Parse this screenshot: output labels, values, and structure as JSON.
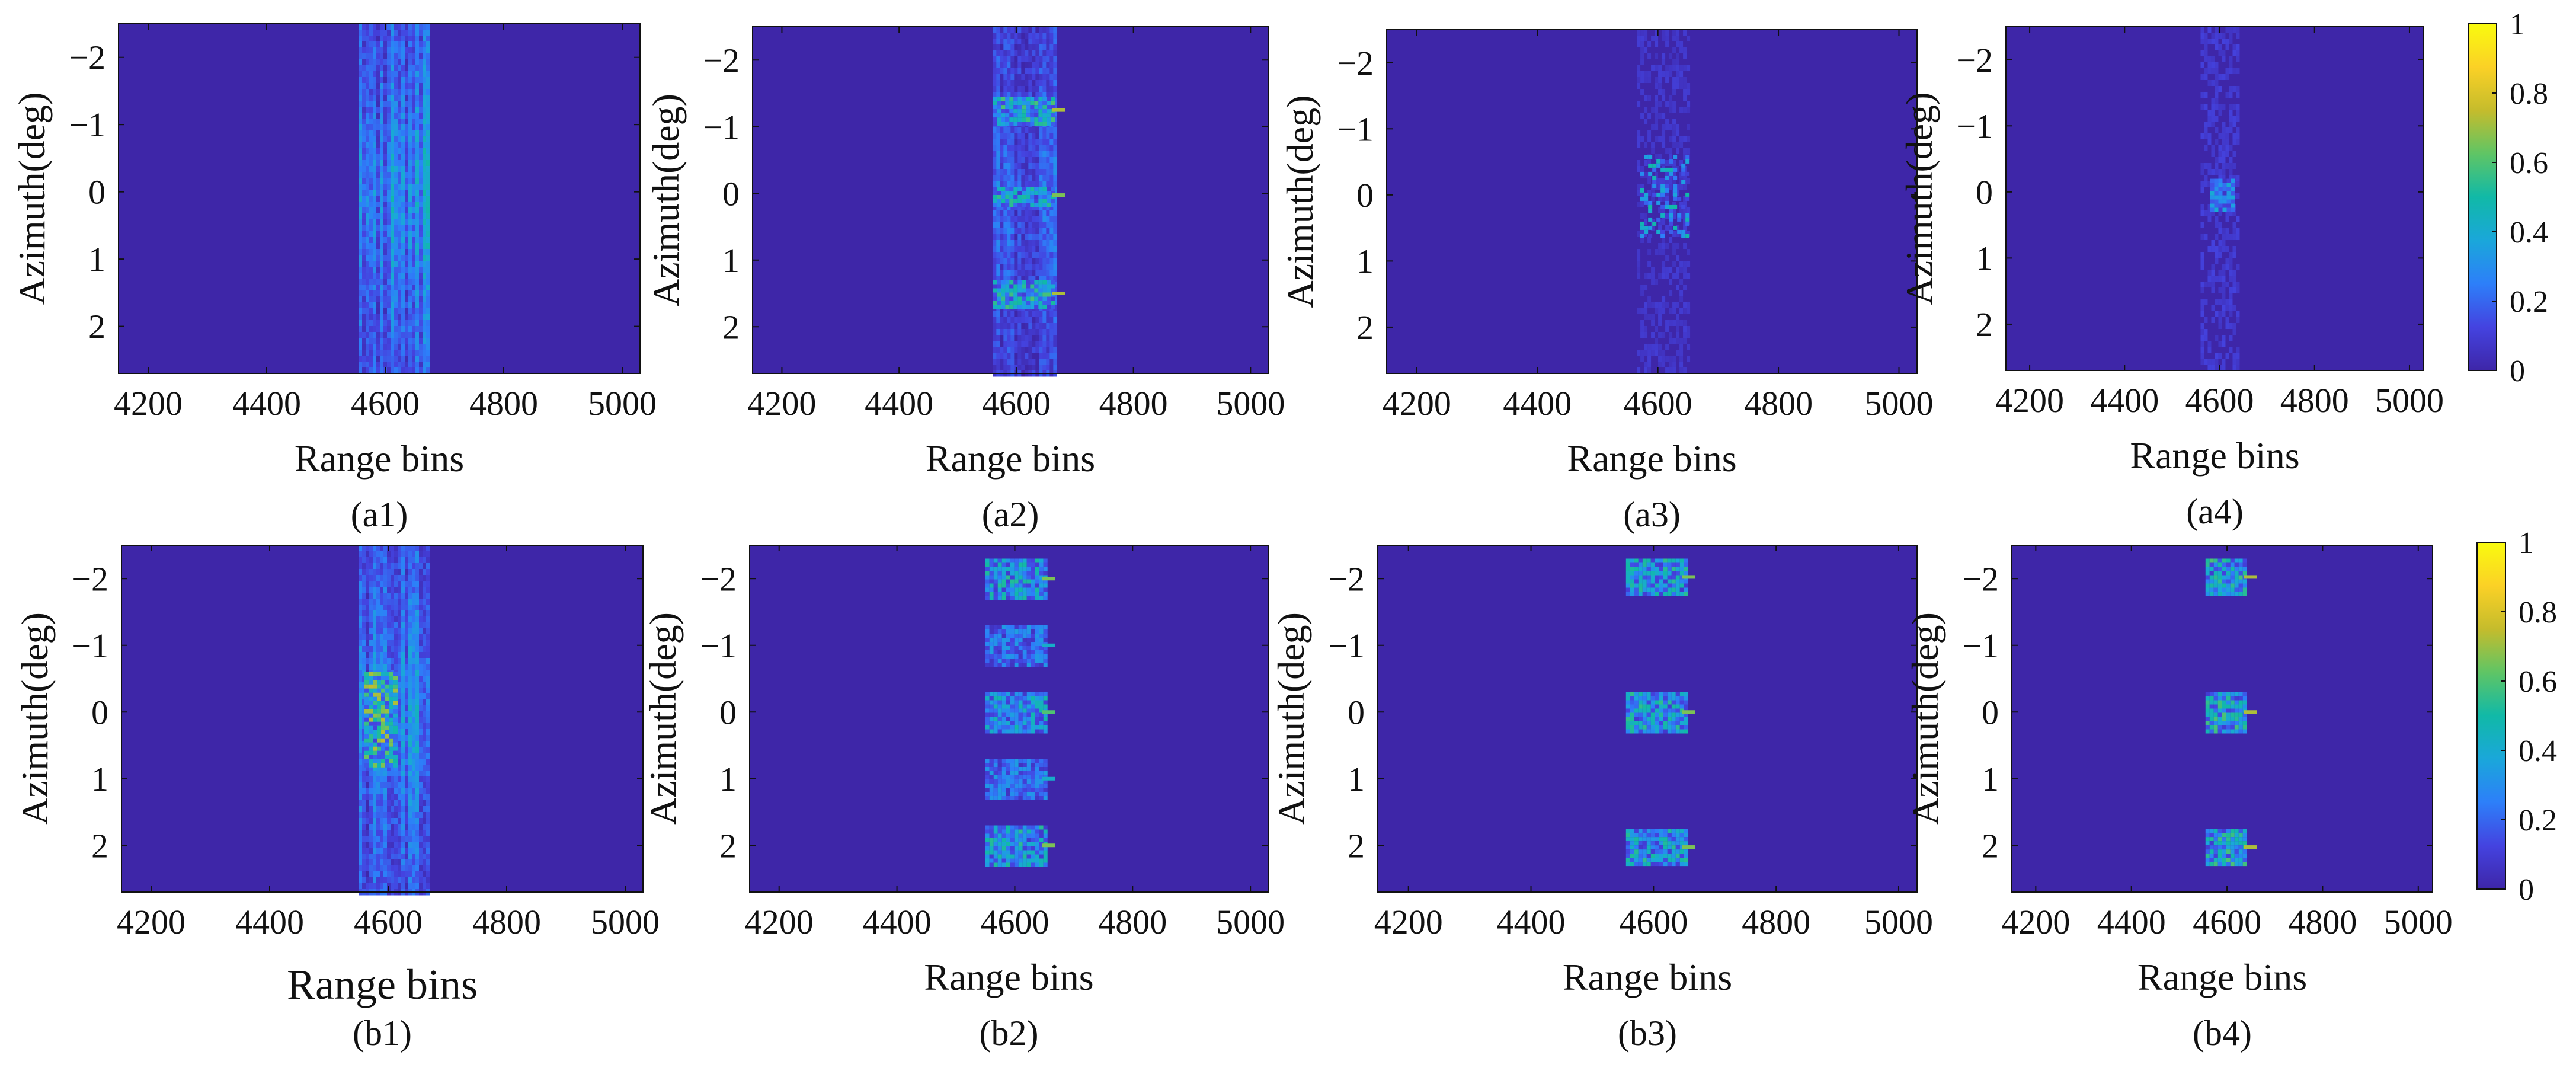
{
  "colors": {
    "background": "#3b2fa0",
    "parula_stops": [
      "#3e26a8",
      "#4443e0",
      "#2d7ff9",
      "#1aa7da",
      "#11b9a7",
      "#5fc565",
      "#c5bc2c",
      "#fbd126",
      "#f9fb0e"
    ]
  },
  "chart_data": [
    {
      "id": "a1",
      "type": "heatmap",
      "caption": "(a1)",
      "xlabel": "Range bins",
      "ylabel": "Azimuth(deg)",
      "xlim": [
        4150,
        5030
      ],
      "ylim": [
        -2.5,
        2.7
      ],
      "xticks": [
        "4200",
        "4400",
        "4600",
        "4800",
        "5000"
      ],
      "xtick_values": [
        4200,
        4400,
        4600,
        4800,
        5000
      ],
      "yticks": [
        "−2",
        "−1",
        "0",
        "1",
        "2"
      ],
      "ytick_values": [
        -2,
        -1,
        0,
        1,
        2
      ],
      "pattern": "band",
      "band_range": [
        4555,
        4675
      ],
      "peak": 0.65,
      "blobs": []
    },
    {
      "id": "a2",
      "type": "heatmap",
      "caption": "(a2)",
      "xlabel": "Range bins",
      "ylabel": "Azimuth(deg)",
      "xlim": [
        4150,
        5030
      ],
      "ylim": [
        -2.5,
        2.7
      ],
      "xticks": [
        "4200",
        "4400",
        "4600",
        "4800",
        "5000"
      ],
      "xtick_values": [
        4200,
        4400,
        4600,
        4800,
        5000
      ],
      "yticks": [
        "−2",
        "−1",
        "0",
        "1",
        "2"
      ],
      "ytick_values": [
        -2,
        -1,
        0,
        1,
        2
      ],
      "pattern": "band",
      "band_range": [
        4560,
        4665
      ],
      "peak": 0.35,
      "blobs": [
        {
          "x0": 4560,
          "x1": 4665,
          "y0": -1.45,
          "y1": -1.05,
          "peak": 0.6
        },
        {
          "x0": 4560,
          "x1": 4665,
          "y0": -0.1,
          "y1": 0.15,
          "peak": 0.55
        },
        {
          "x0": 4560,
          "x1": 4665,
          "y0": 1.3,
          "y1": 1.7,
          "peak": 0.6
        }
      ]
    },
    {
      "id": "a3",
      "type": "heatmap",
      "caption": "(a3)",
      "xlabel": "Range bins",
      "ylabel": "Azimuth(deg)",
      "xlim": [
        4150,
        5030
      ],
      "ylim": [
        -2.5,
        2.7
      ],
      "xticks": [
        "4200",
        "4400",
        "4600",
        "4800",
        "5000"
      ],
      "xtick_values": [
        4200,
        4400,
        4600,
        4800,
        5000
      ],
      "yticks": [
        "−2",
        "−1",
        "0",
        "1",
        "2"
      ],
      "ytick_values": [
        -2,
        -1,
        0,
        1,
        2
      ],
      "pattern": "sparse",
      "band_range": [
        4565,
        4650
      ],
      "peak": 0.1,
      "blobs": [
        {
          "x0": 4570,
          "x1": 4650,
          "y0": -0.6,
          "y1": 0.6,
          "peak": 0.5
        }
      ]
    },
    {
      "id": "a4",
      "type": "heatmap",
      "caption": "(a4)",
      "xlabel": "Range bins",
      "ylabel": "Azimuth(deg)",
      "xlim": [
        4150,
        5030
      ],
      "ylim": [
        -2.5,
        2.7
      ],
      "xticks": [
        "4200",
        "4400",
        "4600",
        "4800",
        "5000"
      ],
      "xtick_values": [
        4200,
        4400,
        4600,
        4800,
        5000
      ],
      "yticks": [
        "−2",
        "−1",
        "0",
        "1",
        "2"
      ],
      "ytick_values": [
        -2,
        -1,
        0,
        1,
        2
      ],
      "pattern": "faint",
      "band_range": [
        4560,
        4640
      ],
      "peak": 0.12,
      "blobs": [
        {
          "x0": 4580,
          "x1": 4630,
          "y0": -0.2,
          "y1": 0.3,
          "peak": 0.4
        }
      ]
    },
    {
      "id": "b1",
      "type": "heatmap",
      "caption": "(b1)",
      "xlabel": "Range bins",
      "ylabel": "Azimuth(deg)",
      "xlim": [
        4150,
        5030
      ],
      "ylim": [
        -2.5,
        2.7
      ],
      "xticks": [
        "4200",
        "4400",
        "4600",
        "4800",
        "5000"
      ],
      "xtick_values": [
        4200,
        4400,
        4600,
        4800,
        5000
      ],
      "yticks": [
        "−2",
        "−1",
        "0",
        "1",
        "2"
      ],
      "ytick_values": [
        -2,
        -1,
        0,
        1,
        2
      ],
      "pattern": "band",
      "band_range": [
        4550,
        4665
      ],
      "peak": 0.55,
      "blobs": [
        {
          "x0": 4560,
          "x1": 4610,
          "y0": -0.6,
          "y1": 0.8,
          "peak": 0.75
        }
      ]
    },
    {
      "id": "b2",
      "type": "heatmap",
      "caption": "(b2)",
      "xlabel": "Range bins",
      "ylabel": "Azimuth(deg)",
      "xlim": [
        4150,
        5030
      ],
      "ylim": [
        -2.5,
        2.7
      ],
      "xticks": [
        "4200",
        "4400",
        "4600",
        "4800",
        "5000"
      ],
      "xtick_values": [
        4200,
        4400,
        4600,
        4800,
        5000
      ],
      "yticks": [
        "−2",
        "−1",
        "0",
        "1",
        "2"
      ],
      "ytick_values": [
        -2,
        -1,
        0,
        1,
        2
      ],
      "pattern": "blocks",
      "band_range": [
        4550,
        4650
      ],
      "peak": 0.05,
      "blobs": [
        {
          "x0": 4550,
          "x1": 4650,
          "y0": -2.3,
          "y1": -1.7,
          "peak": 0.55
        },
        {
          "x0": 4550,
          "x1": 4650,
          "y0": -1.3,
          "y1": -0.7,
          "peak": 0.35
        },
        {
          "x0": 4550,
          "x1": 4650,
          "y0": -0.3,
          "y1": 0.3,
          "peak": 0.5
        },
        {
          "x0": 4550,
          "x1": 4650,
          "y0": 0.7,
          "y1": 1.3,
          "peak": 0.35
        },
        {
          "x0": 4550,
          "x1": 4650,
          "y0": 1.7,
          "y1": 2.3,
          "peak": 0.55
        }
      ]
    },
    {
      "id": "b3",
      "type": "heatmap",
      "caption": "(b3)",
      "xlabel": "Range bins",
      "ylabel": "Azimuth(deg)",
      "xlim": [
        4150,
        5030
      ],
      "ylim": [
        -2.5,
        2.7
      ],
      "xticks": [
        "4200",
        "4400",
        "4600",
        "4800",
        "5000"
      ],
      "xtick_values": [
        4200,
        4400,
        4600,
        4800,
        5000
      ],
      "yticks": [
        "−2",
        "−1",
        "0",
        "1",
        "2"
      ],
      "ytick_values": [
        -2,
        -1,
        0,
        1,
        2
      ],
      "pattern": "blocks",
      "band_range": [
        4555,
        4650
      ],
      "peak": 0.05,
      "blobs": [
        {
          "x0": 4555,
          "x1": 4650,
          "y0": -2.3,
          "y1": -1.75,
          "peak": 0.55
        },
        {
          "x0": 4555,
          "x1": 4650,
          "y0": -0.3,
          "y1": 0.3,
          "peak": 0.55
        },
        {
          "x0": 4555,
          "x1": 4650,
          "y0": 1.75,
          "y1": 2.3,
          "peak": 0.55
        }
      ]
    },
    {
      "id": "b4",
      "type": "heatmap",
      "caption": "(b4)",
      "xlabel": "Range bins",
      "ylabel": "Azimuth(deg)",
      "xlim": [
        4150,
        5030
      ],
      "ylim": [
        -2.5,
        2.7
      ],
      "xticks": [
        "4200",
        "4400",
        "4600",
        "4800",
        "5000"
      ],
      "xtick_values": [
        4200,
        4400,
        4600,
        4800,
        5000
      ],
      "yticks": [
        "−2",
        "−1",
        "0",
        "1",
        "2"
      ],
      "ytick_values": [
        -2,
        -1,
        0,
        1,
        2
      ],
      "pattern": "blocks",
      "band_range": [
        4555,
        4640
      ],
      "peak": 0.05,
      "blobs": [
        {
          "x0": 4555,
          "x1": 4640,
          "y0": -2.3,
          "y1": -1.75,
          "peak": 0.6
        },
        {
          "x0": 4555,
          "x1": 4640,
          "y0": -0.3,
          "y1": 0.3,
          "peak": 0.6
        },
        {
          "x0": 4555,
          "x1": 4640,
          "y0": 1.75,
          "y1": 2.3,
          "peak": 0.6
        }
      ]
    }
  ],
  "colorbars": [
    {
      "id": "cbar-top",
      "range": [
        0,
        1
      ],
      "ticks": [
        "1",
        "0.8",
        "0.6",
        "0.4",
        "0.2",
        "0"
      ],
      "tick_values": [
        1,
        0.8,
        0.6,
        0.4,
        0.2,
        0
      ]
    },
    {
      "id": "cbar-bottom",
      "range": [
        0,
        1
      ],
      "ticks": [
        "1",
        "0.8",
        "0.6",
        "0.4",
        "0.2",
        "0"
      ],
      "tick_values": [
        1,
        0.8,
        0.6,
        0.4,
        0.2,
        0
      ]
    }
  ]
}
